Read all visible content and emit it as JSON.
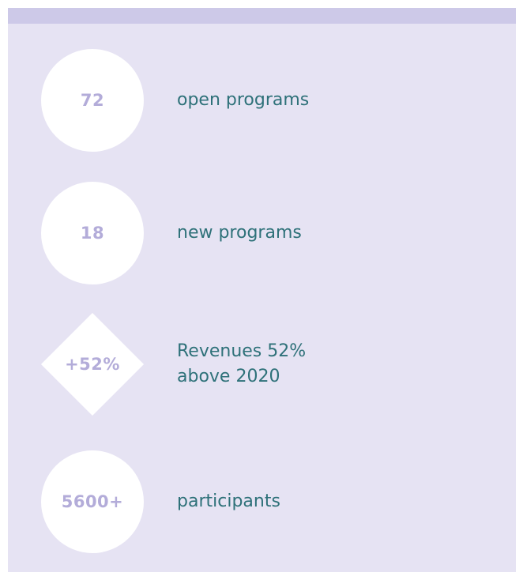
{
  "items": [
    {
      "figure": "72",
      "label": "open programs",
      "shape": "circle"
    },
    {
      "figure": "18",
      "label": "new programs",
      "shape": "circle"
    },
    {
      "figure": "+52%",
      "label": "Revenues 52% above 2020",
      "shape": "diamond"
    },
    {
      "figure": "5600+",
      "label": "participants",
      "shape": "circle"
    }
  ]
}
